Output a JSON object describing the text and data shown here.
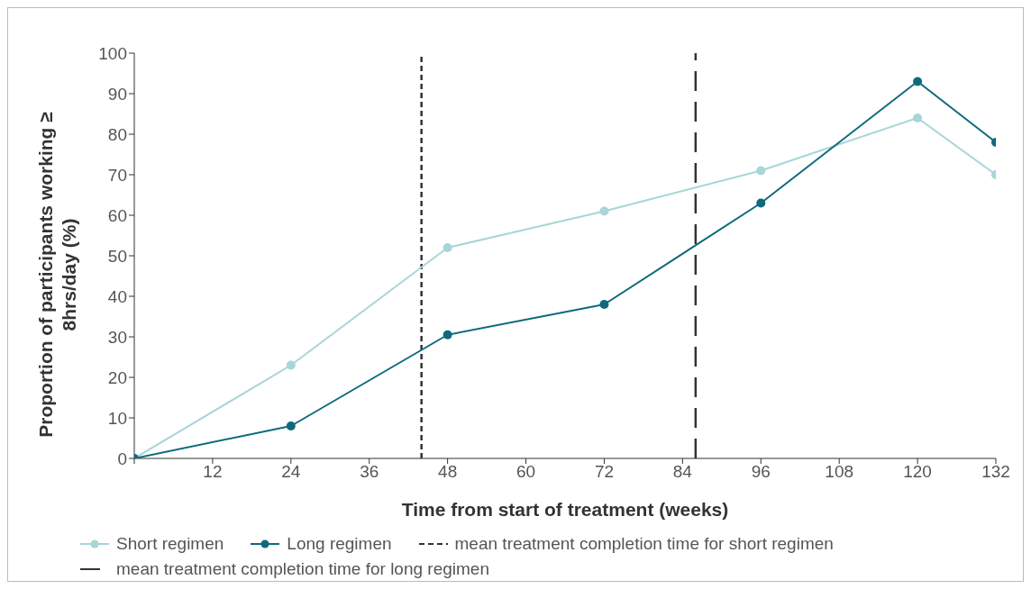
{
  "chart_data": {
    "type": "line",
    "xlabel": "Time from start of treatment (weeks)",
    "ylabel": "Proportion of participants working ≥ 8hrs/day (%)",
    "x": [
      0,
      24,
      48,
      72,
      96,
      120,
      132
    ],
    "series": [
      {
        "name": "Short regimen",
        "color": "#a8d5d8",
        "values": [
          0,
          23,
          52,
          61,
          71,
          84,
          70
        ]
      },
      {
        "name": "Long regimen",
        "color": "#0e6a7c",
        "values": [
          0,
          8,
          30.5,
          38,
          63,
          93,
          78
        ]
      }
    ],
    "xlim": [
      0,
      132
    ],
    "xticks": [
      {
        "value": 0,
        "label": null
      },
      12,
      24,
      36,
      48,
      60,
      72,
      84,
      96,
      108,
      120,
      132
    ],
    "ylim": [
      0,
      100
    ],
    "yticks": [
      0,
      10,
      20,
      30,
      40,
      50,
      60,
      70,
      80,
      90,
      100
    ],
    "ref_lines": [
      {
        "axis": "x",
        "value": 44,
        "label": "mean treatment completion time for short regimen",
        "color": "#333333",
        "line_style": "dotted"
      },
      {
        "axis": "x",
        "value": 86,
        "label": "mean treatment completion time for long regimen",
        "color": "#333333",
        "line_style": "dashed"
      }
    ],
    "grid": false,
    "legend": "bottom",
    "marker": "circle",
    "line_style": "solid"
  }
}
